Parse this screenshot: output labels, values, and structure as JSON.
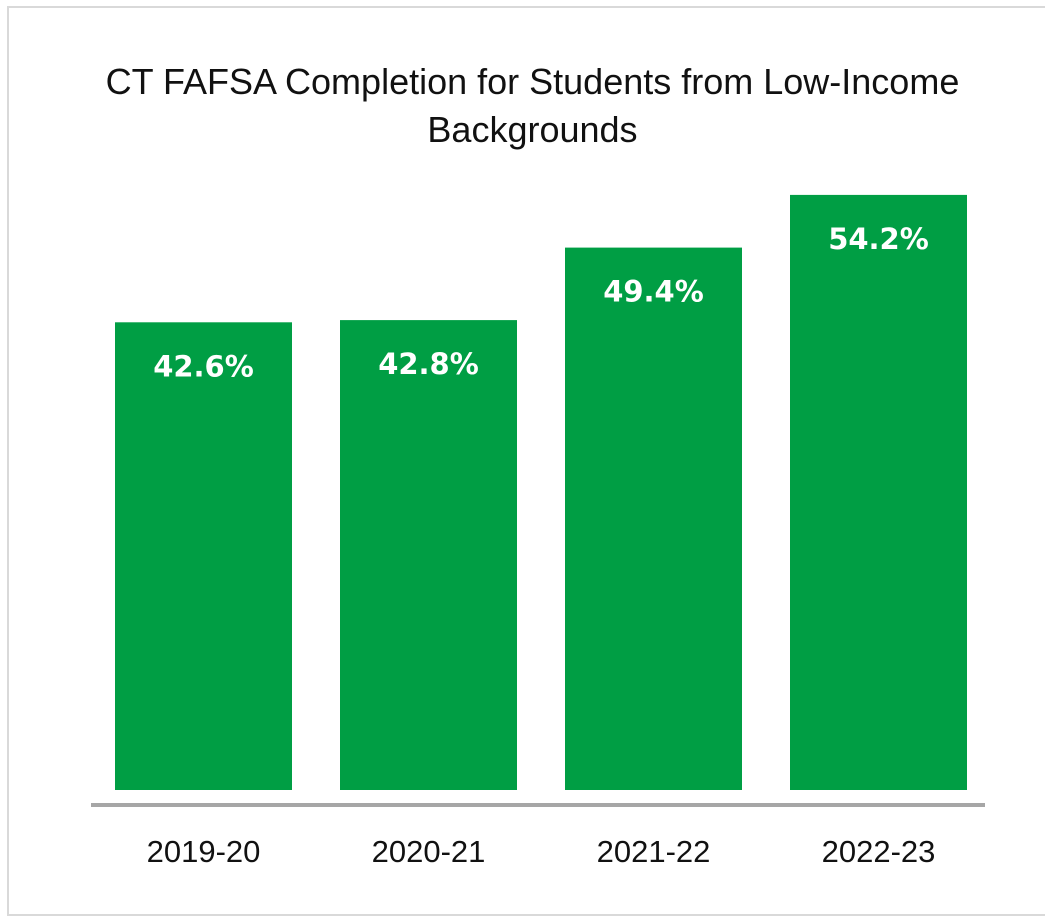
{
  "chart_data": {
    "type": "bar",
    "title": "CT FAFSA Completion for Students from Low-Income Backgrounds",
    "categories": [
      "2019-20",
      "2020-21",
      "2021-22",
      "2022-23"
    ],
    "values": [
      42.6,
      42.8,
      49.4,
      54.2
    ],
    "data_labels": [
      "42.6%",
      "42.8%",
      "49.4%",
      "54.2%"
    ],
    "xlabel": "",
    "ylabel": "",
    "ylim": [
      0,
      60
    ],
    "grid": false,
    "legend": "none",
    "colors": {
      "bar": "#009e44",
      "axis": "#a6a6a6",
      "bar_label": "#ffffff",
      "text": "#111111"
    }
  }
}
